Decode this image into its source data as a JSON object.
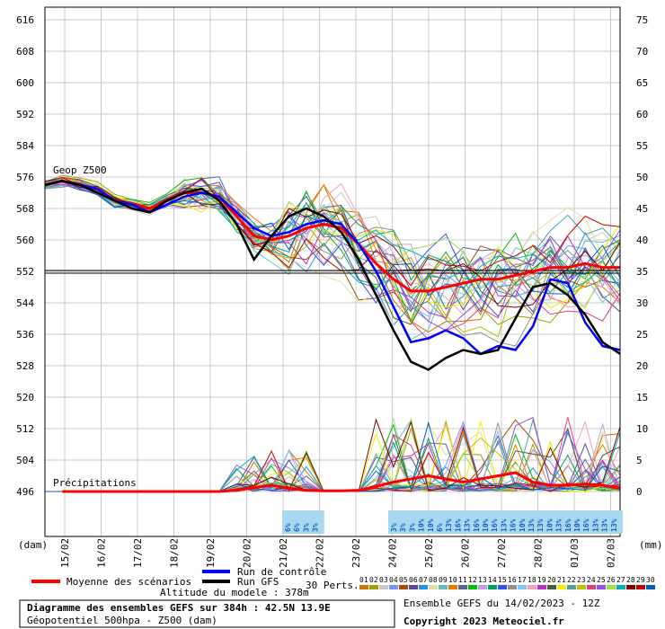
{
  "chart_data": {
    "type": "line",
    "title": "Diagramme des ensembles GEFS sur 384h : 42.5N 13.9E",
    "subtitle": "Géopotentiel 500hpa - Z500 (dam)",
    "ensemble_label": "Ensemble GEFS du 14/02/2023 - 12Z",
    "copyright": "Copyright 2023 Meteociel.fr",
    "model_altitude": "Altitude du modele : 378m",
    "ylabel_left": "(dam)",
    "ylabel_right": "(mm)",
    "y_left_ticks": [
      "616",
      "608",
      "600",
      "592",
      "584",
      "576",
      "568",
      "560",
      "552",
      "544",
      "536",
      "528",
      "520",
      "512",
      "504",
      "496"
    ],
    "y_right_ticks": [
      "75",
      "70",
      "65",
      "60",
      "55",
      "50",
      "45",
      "40",
      "35",
      "30",
      "25",
      "20",
      "15",
      "10",
      "5",
      "0"
    ],
    "ylim_left": [
      496,
      616
    ],
    "ylim_right": [
      0,
      75
    ],
    "x_ticks": [
      "15/02",
      "16/02",
      "17/02",
      "18/02",
      "19/02",
      "20/02",
      "21/02",
      "22/02",
      "23/02",
      "24/02",
      "25/02",
      "26/02",
      "27/02",
      "28/02",
      "01/03",
      "02/03"
    ],
    "annotations": {
      "geop": "Geop Z500",
      "precip": "Précipitations"
    },
    "climatology_line": 552,
    "legend": {
      "mean": "Moyenne des scénarios",
      "control": "Run de contrôle",
      "gfs": "Run GFS",
      "perts": "30 Perts."
    },
    "pert_numbers": [
      "01",
      "02",
      "03",
      "04",
      "05",
      "06",
      "07",
      "08",
      "09",
      "10",
      "11",
      "12",
      "13",
      "14",
      "15",
      "16",
      "17",
      "18",
      "19",
      "20",
      "21",
      "22",
      "23",
      "24",
      "25",
      "26",
      "27",
      "28",
      "29",
      "30"
    ],
    "pert_colors": [
      "#c87800",
      "#a0a000",
      "#c8c8c8",
      "#7898f0",
      "#a05000",
      "#604890",
      "#2890e0",
      "#e0e0a0",
      "#60c0c0",
      "#f07800",
      "#6060a0",
      "#00c000",
      "#c0a0e0",
      "#00a060",
      "#3050f0",
      "#909090",
      "#80c8f0",
      "#f0a0c0",
      "#c030c0",
      "#406040",
      "#f0f000",
      "#50a0a0",
      "#c0c000",
      "#e04080",
      "#9050f0",
      "#a0e040",
      "#00b0b0",
      "#800000",
      "#c00000",
      "#0060c0"
    ],
    "precip_prob_groups": [
      [
        "6%",
        "6%",
        "3%",
        "3%"
      ],
      [
        "3%",
        "3%",
        "3%",
        "10%",
        "10%",
        "6%",
        "13%",
        "16%",
        "13%",
        "16%",
        "10%",
        "16%",
        "13%",
        "16%",
        "10%",
        "13%",
        "13%",
        "10%",
        "13%",
        "16%",
        "10%",
        "16%",
        "13%",
        "13%",
        "13%"
      ]
    ],
    "series": [
      {
        "name": "Moyenne des scénarios",
        "color": "#ff0000",
        "values": [
          574,
          575,
          574,
          573,
          570,
          569,
          568,
          570,
          572,
          572,
          571,
          566,
          561,
          560,
          561,
          563,
          564,
          563,
          559,
          554,
          550,
          547,
          547,
          548,
          549,
          550,
          550,
          551,
          552,
          553,
          553,
          554,
          553,
          553
        ]
      },
      {
        "name": "Run de contrôle",
        "color": "#0000ff",
        "values": [
          574,
          575,
          574,
          573,
          570,
          569,
          567,
          569,
          571,
          572,
          571,
          567,
          563,
          561,
          562,
          564,
          565,
          564,
          559,
          552,
          543,
          534,
          535,
          537,
          535,
          531,
          533,
          532,
          538,
          550,
          549,
          539,
          533,
          532
        ]
      },
      {
        "name": "Run GFS",
        "color": "#000000",
        "values": [
          574,
          575,
          574,
          572,
          570,
          568,
          567,
          570,
          572,
          573,
          570,
          564,
          555,
          561,
          566,
          568,
          566,
          562,
          555,
          546,
          537,
          529,
          527,
          530,
          532,
          531,
          532,
          540,
          548,
          549,
          546,
          541,
          534,
          531
        ]
      },
      {
        "name": "Précipitations moyenne",
        "color": "#ff0000",
        "values": [
          0,
          0,
          0,
          0,
          0,
          0,
          0,
          0,
          0,
          0,
          0,
          0.2,
          0.6,
          1,
          0.5,
          0.2,
          0.1,
          0.1,
          0.2,
          0.8,
          1.5,
          2,
          2.5,
          2,
          1.5,
          2,
          2.5,
          3,
          1.5,
          1,
          1,
          1.2,
          1,
          0.5
        ]
      }
    ]
  }
}
